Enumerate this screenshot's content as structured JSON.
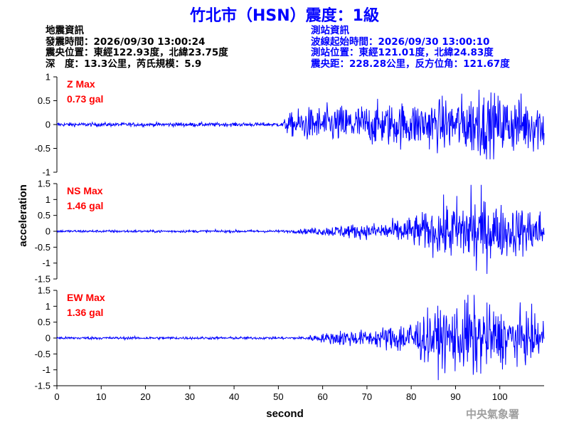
{
  "title": "竹北市（HSN）震度：1級",
  "earthquake_info": {
    "heading": "地震資訊",
    "origin_time": "發震時間：2026/09/30 13:00:24",
    "epicenter": "震央位置：東經122.93度，北緯23.75度",
    "depth_magnitude": "深　度：13.3公里，芮氏規模：5.9"
  },
  "station_info": {
    "heading": "測站資訊",
    "wave_start": "波線起始時間：2026/09/30 13:00:10",
    "station_location": "測站位置：東經121.01度，北緯24.83度",
    "distance_azimuth": "震央距：228.28公里，反方位角：121.67度"
  },
  "agency": "中央氣象署",
  "colors": {
    "title": "#0000ff",
    "trace": "#0000ff",
    "label": "#ff0000",
    "axis": "#000000",
    "station_text": "#0000ff",
    "agency": "#a0a0a0"
  },
  "chart_data": {
    "type": "line",
    "xlabel": "second",
    "ylabel": "acceleration",
    "xlim": [
      0,
      110
    ],
    "xticks": [
      0,
      10,
      20,
      30,
      40,
      50,
      60,
      70,
      80,
      90,
      100
    ],
    "grid": false,
    "panels": [
      {
        "component": "Z",
        "max_label": "Z Max",
        "max_value": "0.73 gal",
        "ylim": [
          -1,
          1
        ],
        "yticks": [
          1,
          0.5,
          0,
          -0.5,
          -1
        ],
        "arrival_s": 51,
        "noise": 0.02,
        "envelope": [
          [
            51,
            0.05
          ],
          [
            52,
            0.18
          ],
          [
            55,
            0.3
          ],
          [
            62,
            0.35
          ],
          [
            70,
            0.38
          ],
          [
            80,
            0.42
          ],
          [
            90,
            0.5
          ],
          [
            95,
            0.6
          ],
          [
            100,
            0.55
          ],
          [
            110,
            0.5
          ]
        ],
        "peak": 0.73
      },
      {
        "component": "NS",
        "max_label": "NS Max",
        "max_value": "1.46 gal",
        "ylim": [
          -1.5,
          1.5
        ],
        "yticks": [
          1.5,
          1,
          0.5,
          0,
          -0.5,
          -1,
          -1.5
        ],
        "arrival_s": 53,
        "noise": 0.02,
        "envelope": [
          [
            53,
            0.04
          ],
          [
            60,
            0.12
          ],
          [
            65,
            0.2
          ],
          [
            70,
            0.2
          ],
          [
            78,
            0.35
          ],
          [
            84,
            0.55
          ],
          [
            90,
            0.9
          ],
          [
            95,
            1.0
          ],
          [
            100,
            0.75
          ],
          [
            110,
            0.6
          ]
        ],
        "peak": 1.46
      },
      {
        "component": "EW",
        "max_label": "EW Max",
        "max_value": "1.36 gal",
        "ylim": [
          -1.5,
          1.5
        ],
        "yticks": [
          1.5,
          1,
          0.5,
          0,
          -0.5,
          -1,
          -1.5
        ],
        "arrival_s": 55,
        "noise": 0.02,
        "envelope": [
          [
            55,
            0.05
          ],
          [
            60,
            0.12
          ],
          [
            65,
            0.25
          ],
          [
            70,
            0.2
          ],
          [
            75,
            0.35
          ],
          [
            80,
            0.55
          ],
          [
            85,
            0.75
          ],
          [
            90,
            0.95
          ],
          [
            95,
            1.0
          ],
          [
            100,
            0.8
          ],
          [
            110,
            0.6
          ]
        ],
        "peak": 1.36
      }
    ]
  }
}
